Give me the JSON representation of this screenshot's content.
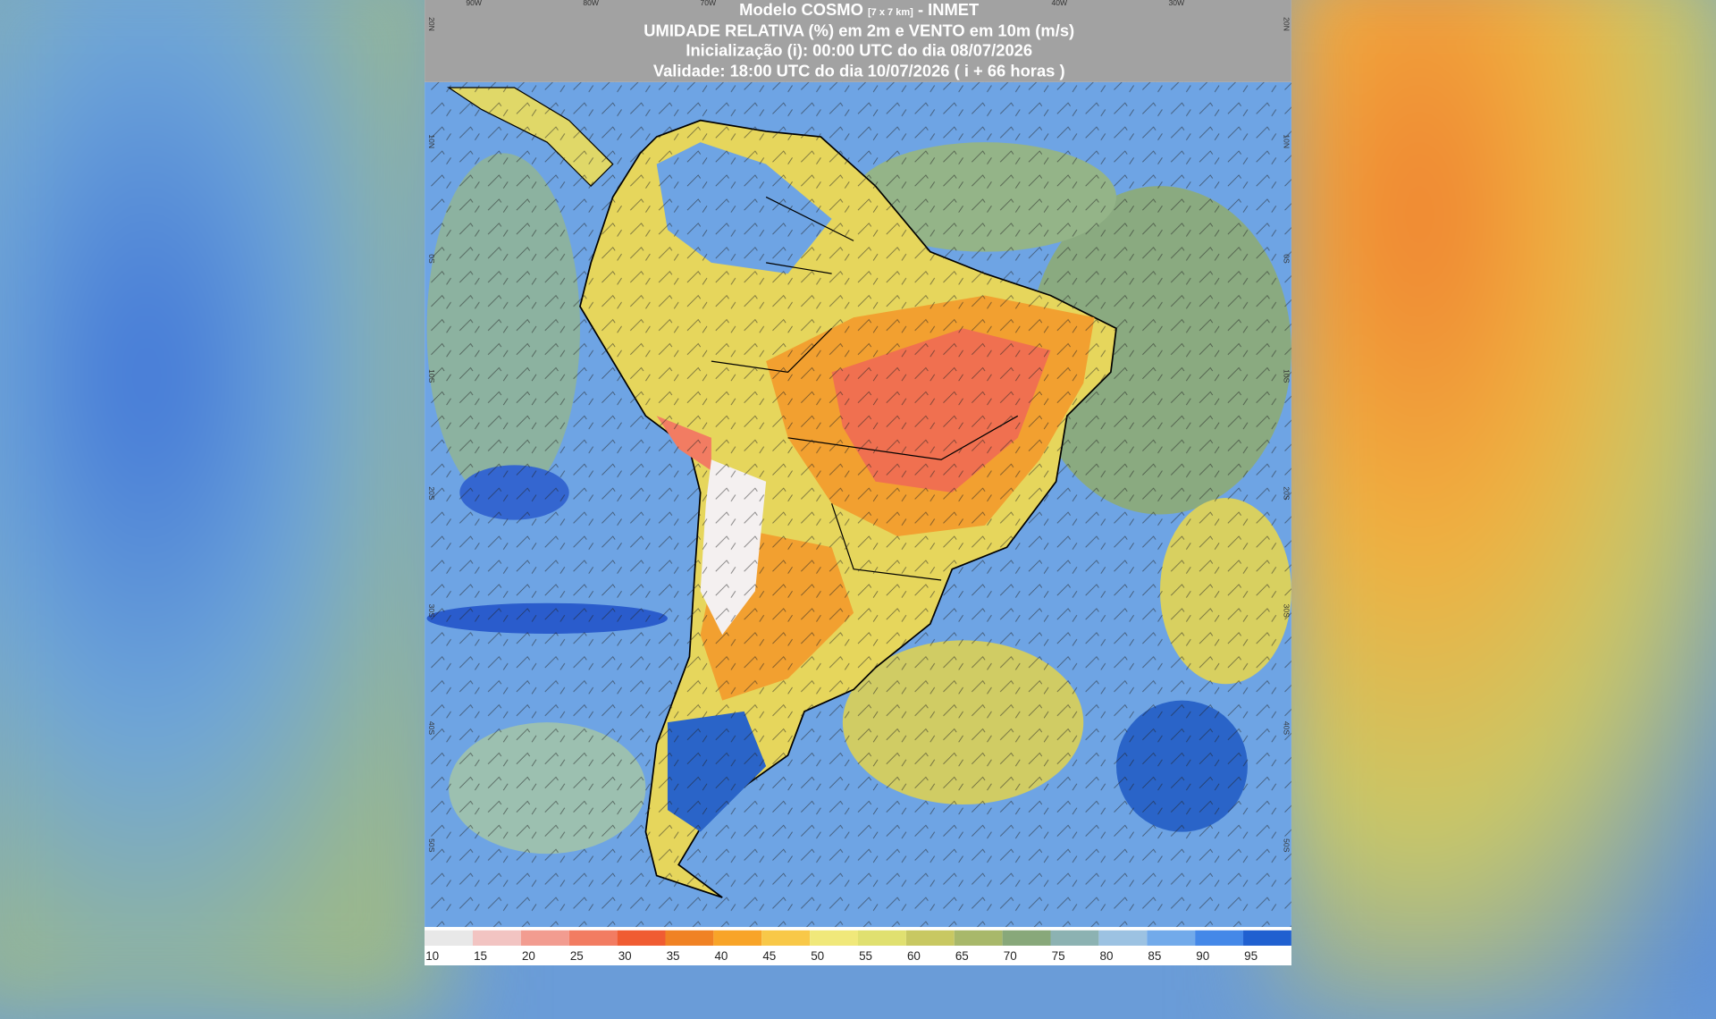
{
  "header": {
    "title": "Modelo COSMO",
    "resolution": "[7 x 7 km]",
    "source": "- INMET",
    "subtitle": "UMIDADE RELATIVA (%) em 2m e VENTO em 10m (m/s)",
    "initialization": "Inicialização (i): 00:00 UTC do dia 08/07/2026",
    "validity": "Validade: 18:00 UTC do dia 10/07/2026 ( i + 66 horas )"
  },
  "map": {
    "top_labels": [
      "90W",
      "80W",
      "70W",
      "40W",
      "30W"
    ],
    "left_labels": [
      "20N",
      "10N",
      "0S",
      "10S",
      "20S",
      "30S",
      "40S",
      "50S"
    ],
    "right_labels": [
      "20N",
      "10N",
      "0S",
      "10S",
      "20S",
      "30S",
      "40S",
      "50S"
    ]
  },
  "colorbar": {
    "labels": [
      10,
      15,
      20,
      25,
      30,
      35,
      40,
      45,
      50,
      55,
      60,
      65,
      70,
      75,
      80,
      85,
      90,
      95
    ],
    "colors": [
      "#e8e8e8",
      "#f2c4c2",
      "#f29c90",
      "#f27c62",
      "#f05c32",
      "#f08224",
      "#f8a428",
      "#f8c848",
      "#f0e87a",
      "#e0e070",
      "#c8c862",
      "#a8b86a",
      "#88a87a",
      "#8cb2b2",
      "#9cc2e2",
      "#72aaea",
      "#4488e8",
      "#2060d0"
    ]
  }
}
